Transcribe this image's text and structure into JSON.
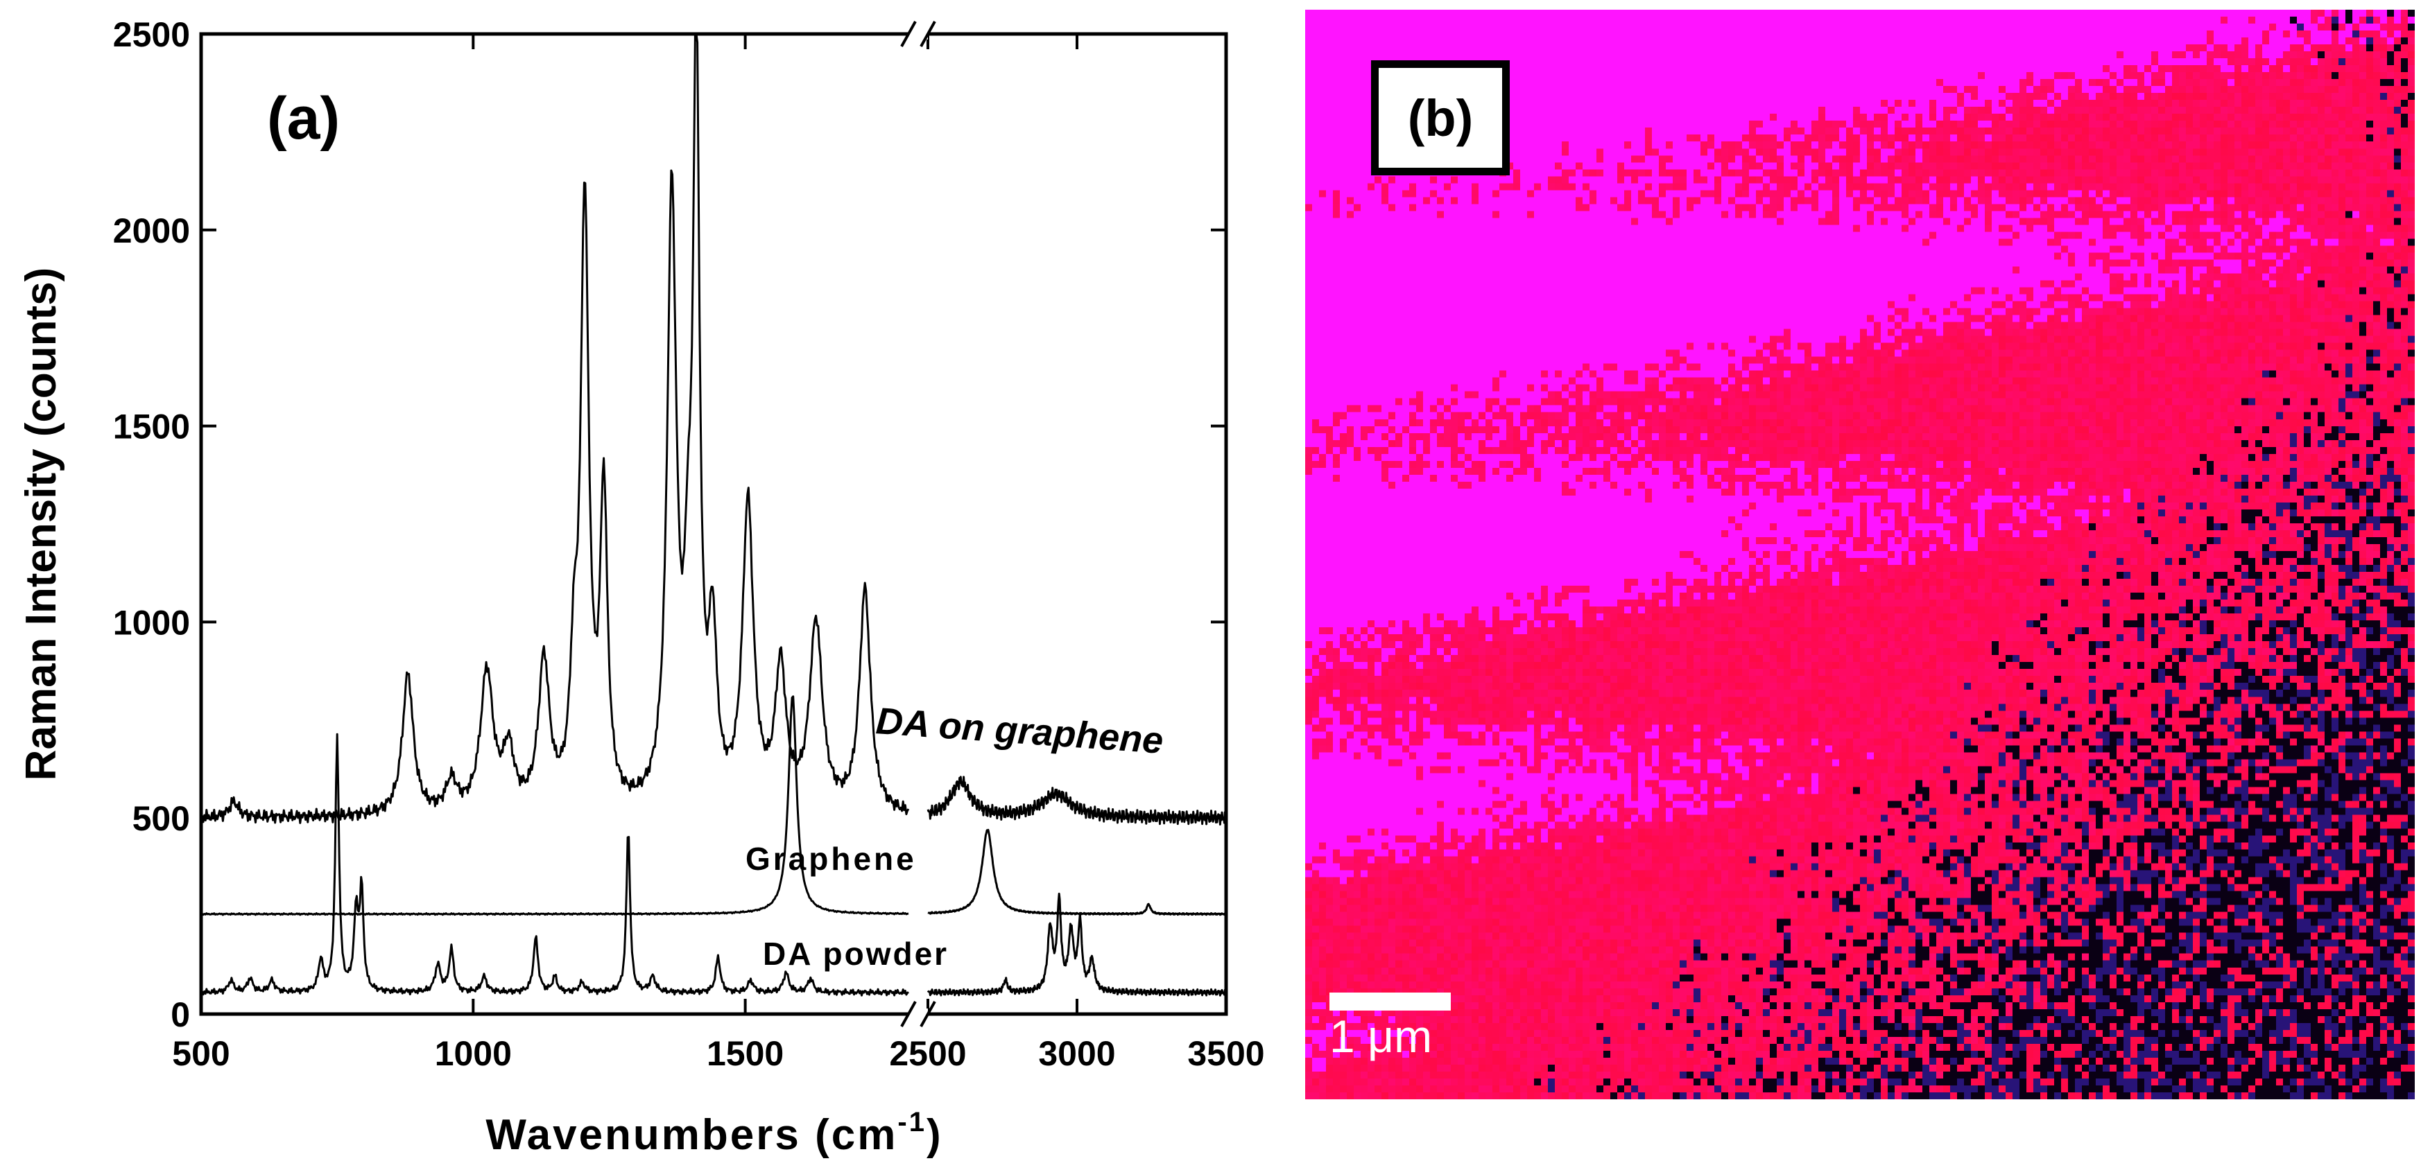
{
  "chart_data": [
    {
      "panel": "(a)",
      "type": "line",
      "xlabel": "Wavenumbers (cm",
      "xlabel_sup": "-1",
      "xlabel_close": ")",
      "ylabel": "Raman Intensity (counts)",
      "ylim": [
        0,
        2500
      ],
      "x_axis_break": [
        1800,
        2500
      ],
      "xlim_segments": [
        [
          500,
          1800
        ],
        [
          2500,
          3500
        ]
      ],
      "xticks": [
        500,
        1000,
        1500,
        2500,
        3000,
        3500
      ],
      "xtick_labels": [
        "500",
        "1000",
        "1500",
        "2500",
        "3000",
        "3500"
      ],
      "yticks": [
        0,
        500,
        1000,
        1500,
        2000,
        2500
      ],
      "ytick_labels": [
        "0",
        "500",
        "1000",
        "1500",
        "2000",
        "2500"
      ],
      "series": [
        {
          "name": "DA on graphene",
          "baseline": 500,
          "peaks": [
            [
              560,
              40,
              10
            ],
            [
              880,
              360,
              12
            ],
            [
              960,
              80,
              12
            ],
            [
              1025,
              360,
              14
            ],
            [
              1065,
              150,
              12
            ],
            [
              1130,
              380,
              12
            ],
            [
              1185,
              300,
              8
            ],
            [
              1205,
              1540,
              9
            ],
            [
              1240,
              790,
              8
            ],
            [
              1365,
              1560,
              10
            ],
            [
              1395,
              400,
              8
            ],
            [
              1410,
              1920,
              7
            ],
            [
              1440,
              420,
              9
            ],
            [
              1505,
              780,
              12
            ],
            [
              1565,
              360,
              12
            ],
            [
              1630,
              480,
              14
            ],
            [
              1720,
              570,
              12
            ],
            [
              2610,
              90,
              40
            ],
            [
              2930,
              60,
              60
            ]
          ],
          "ripple": 18
        },
        {
          "name": "Graphene",
          "baseline": 255,
          "peaks": [
            [
              1587,
              560,
              9
            ],
            [
              2700,
              215,
              22
            ],
            [
              3240,
              25,
              8
            ]
          ],
          "ripple": 2
        },
        {
          "name": "DA powder",
          "baseline": 55,
          "peaks": [
            [
              555,
              30,
              6
            ],
            [
              590,
              35,
              6
            ],
            [
              630,
              30,
              6
            ],
            [
              720,
              80,
              5
            ],
            [
              750,
              650,
              4
            ],
            [
              785,
              200,
              5
            ],
            [
              795,
              250,
              4
            ],
            [
              935,
              70,
              6
            ],
            [
              960,
              110,
              5
            ],
            [
              1020,
              40,
              6
            ],
            [
              1115,
              140,
              5
            ],
            [
              1150,
              40,
              5
            ],
            [
              1200,
              25,
              6
            ],
            [
              1285,
              420,
              4
            ],
            [
              1330,
              40,
              6
            ],
            [
              1450,
              90,
              5
            ],
            [
              1510,
              30,
              6
            ],
            [
              1575,
              50,
              6
            ],
            [
              1620,
              35,
              6
            ],
            [
              2760,
              30,
              8
            ],
            [
              2910,
              160,
              10
            ],
            [
              2940,
              220,
              8
            ],
            [
              2980,
              150,
              10
            ],
            [
              3010,
              170,
              8
            ],
            [
              3050,
              80,
              10
            ]
          ],
          "ripple": 8
        }
      ],
      "annotations": {
        "panel_label": "(a)",
        "da_on_graphene": "DA on graphene",
        "graphene": "Graphene",
        "da_powder": "DA powder"
      }
    },
    {
      "panel": "(b)",
      "type": "heatmap",
      "description_colors": [
        "#ff00ff",
        "#ff0044",
        "#2a1a8a",
        "#000000"
      ],
      "scale_bar_label": "1 μm"
    }
  ]
}
